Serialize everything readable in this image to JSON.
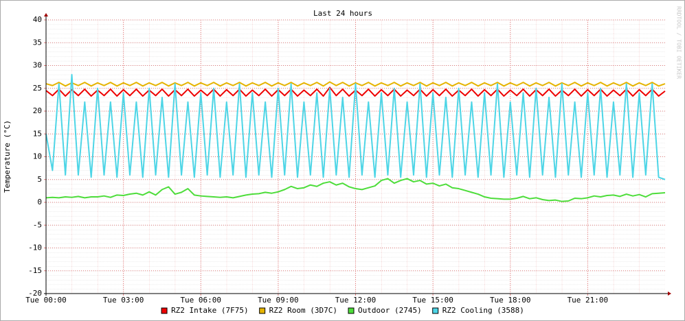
{
  "chart_data": {
    "type": "line",
    "title": "Last 24 hours",
    "y_label": "Temperature (°C)",
    "watermark": "RRDTOOL / TOBI OETIKER",
    "xlim": [
      0,
      24
    ],
    "ylim": [
      -20,
      40
    ],
    "xticks": [
      {
        "value": 0,
        "label": "Tue 00:00"
      },
      {
        "value": 3,
        "label": "Tue 03:00"
      },
      {
        "value": 6,
        "label": "Tue 06:00"
      },
      {
        "value": 9,
        "label": "Tue 09:00"
      },
      {
        "value": 12,
        "label": "Tue 12:00"
      },
      {
        "value": 15,
        "label": "Tue 15:00"
      },
      {
        "value": 18,
        "label": "Tue 18:00"
      },
      {
        "value": 21,
        "label": "Tue 21:00"
      }
    ],
    "yticks": [
      -20,
      -15,
      -10,
      -5,
      0,
      5,
      10,
      15,
      20,
      25,
      30,
      35,
      40
    ],
    "grid": true,
    "legend": "bottom",
    "x": [
      0,
      0.25,
      0.5,
      0.75,
      1,
      1.25,
      1.5,
      1.75,
      2,
      2.25,
      2.5,
      2.75,
      3,
      3.25,
      3.5,
      3.75,
      4,
      4.25,
      4.5,
      4.75,
      5,
      5.25,
      5.5,
      5.75,
      6,
      6.25,
      6.5,
      6.75,
      7,
      7.25,
      7.5,
      7.75,
      8,
      8.25,
      8.5,
      8.75,
      9,
      9.25,
      9.5,
      9.75,
      10,
      10.25,
      10.5,
      10.75,
      11,
      11.25,
      11.5,
      11.75,
      12,
      12.25,
      12.5,
      12.75,
      13,
      13.25,
      13.5,
      13.75,
      14,
      14.25,
      14.5,
      14.75,
      15,
      15.25,
      15.5,
      15.75,
      16,
      16.25,
      16.5,
      16.75,
      17,
      17.25,
      17.5,
      17.75,
      18,
      18.25,
      18.5,
      18.75,
      19,
      19.25,
      19.5,
      19.75,
      20,
      20.25,
      20.5,
      20.75,
      21,
      21.25,
      21.5,
      21.75,
      22,
      22.25,
      22.5,
      22.75,
      23,
      23.25,
      23.5,
      23.75,
      24
    ],
    "series": [
      {
        "name": "RZ2 Intake (7F75)",
        "color": "#ee0000",
        "values": [
          24.5,
          23.4,
          24.8,
          23.3,
          24.7,
          23.4,
          24.8,
          23.3,
          24.6,
          23.4,
          24.8,
          23.3,
          24.7,
          23.4,
          24.8,
          23.3,
          24.6,
          23.4,
          24.8,
          23.3,
          24.7,
          23.4,
          24.8,
          23.3,
          24.6,
          23.4,
          24.8,
          23.3,
          24.7,
          23.4,
          24.8,
          23.3,
          24.6,
          23.4,
          24.8,
          23.3,
          24.7,
          23.4,
          24.8,
          23.3,
          24.6,
          23.4,
          24.8,
          23.3,
          25.2,
          23.4,
          24.8,
          23.3,
          24.6,
          23.4,
          24.8,
          23.3,
          24.7,
          23.4,
          24.8,
          23.3,
          24.6,
          23.4,
          24.8,
          23.3,
          24.7,
          23.4,
          24.8,
          23.3,
          24.6,
          23.4,
          24.8,
          23.3,
          24.7,
          23.4,
          24.8,
          23.3,
          24.6,
          23.4,
          24.8,
          23.3,
          24.7,
          23.4,
          24.8,
          23.3,
          24.6,
          23.4,
          24.8,
          23.3,
          24.7,
          23.4,
          24.8,
          23.3,
          24.6,
          23.4,
          24.8,
          23.3,
          24.7,
          23.4,
          24.8,
          23.3,
          24.4
        ]
      },
      {
        "name": "RZ2 Room (3D7C)",
        "color": "#e6b400",
        "values": [
          26.0,
          25.6,
          26.3,
          25.5,
          26.2,
          25.6,
          26.3,
          25.5,
          26.2,
          25.6,
          26.3,
          25.5,
          26.2,
          25.6,
          26.3,
          25.5,
          26.2,
          25.6,
          26.3,
          25.5,
          26.2,
          25.6,
          26.3,
          25.5,
          26.2,
          25.6,
          26.3,
          25.5,
          26.2,
          25.6,
          26.3,
          25.5,
          26.2,
          25.6,
          26.3,
          25.5,
          26.2,
          25.6,
          26.3,
          25.5,
          26.2,
          25.6,
          26.3,
          25.5,
          26.4,
          25.6,
          26.3,
          25.5,
          26.2,
          25.6,
          26.3,
          25.5,
          26.2,
          25.6,
          26.3,
          25.5,
          26.2,
          25.6,
          26.3,
          25.5,
          26.2,
          25.6,
          26.3,
          25.5,
          26.2,
          25.6,
          26.3,
          25.5,
          26.2,
          25.6,
          26.3,
          25.5,
          26.2,
          25.6,
          26.3,
          25.5,
          26.2,
          25.6,
          26.3,
          25.5,
          26.2,
          25.6,
          26.3,
          25.5,
          26.2,
          25.6,
          26.3,
          25.5,
          26.2,
          25.6,
          26.3,
          25.5,
          26.2,
          25.6,
          26.3,
          25.5,
          26.0
        ]
      },
      {
        "name": "Outdoor (2745)",
        "color": "#4ddd3a",
        "values": [
          1.0,
          1.1,
          1.0,
          1.2,
          1.1,
          1.3,
          1.0,
          1.2,
          1.2,
          1.4,
          1.1,
          1.6,
          1.5,
          1.8,
          2.0,
          1.6,
          2.3,
          1.6,
          2.8,
          3.4,
          1.8,
          2.2,
          3.0,
          1.6,
          1.4,
          1.3,
          1.2,
          1.1,
          1.2,
          1.0,
          1.3,
          1.6,
          1.8,
          1.9,
          2.2,
          2.0,
          2.3,
          2.8,
          3.5,
          3.0,
          3.2,
          3.8,
          3.5,
          4.2,
          4.5,
          3.8,
          4.2,
          3.4,
          3.0,
          2.8,
          3.2,
          3.6,
          4.8,
          5.2,
          4.2,
          4.8,
          5.2,
          4.5,
          4.8,
          4.0,
          4.2,
          3.6,
          4.0,
          3.2,
          3.0,
          2.6,
          2.2,
          1.8,
          1.2,
          0.9,
          0.8,
          0.7,
          0.7,
          0.9,
          1.3,
          0.8,
          1.0,
          0.6,
          0.4,
          0.5,
          0.2,
          0.3,
          0.9,
          0.8,
          1.0,
          1.4,
          1.2,
          1.5,
          1.6,
          1.3,
          1.8,
          1.4,
          1.7,
          1.2,
          1.9,
          2.0,
          2.1
        ]
      },
      {
        "name": "RZ2 Cooling (3588)",
        "color": "#4dd5e6",
        "values": [
          15,
          7,
          26,
          6,
          28,
          6,
          22,
          5.5,
          25,
          6,
          22,
          5.5,
          24,
          6,
          22,
          5.5,
          25,
          6,
          23,
          5.5,
          26,
          6,
          22,
          5.5,
          24,
          6,
          25,
          5.5,
          22,
          6,
          26,
          5.5,
          24,
          6,
          22,
          5.5,
          25,
          6,
          26,
          5.5,
          22,
          6,
          24,
          5.5,
          25,
          6,
          23,
          5.5,
          26,
          6,
          22,
          5.5,
          24,
          6,
          25,
          5.5,
          22,
          6,
          26,
          5.5,
          24,
          6,
          23,
          5.5,
          25,
          6,
          22,
          5.5,
          24,
          6,
          26,
          5.5,
          22,
          6,
          24,
          5.5,
          25,
          6,
          23,
          5.5,
          26,
          6,
          22,
          5.5,
          24,
          6,
          25,
          5.5,
          22,
          6,
          26,
          5.5,
          24,
          6,
          26,
          5.5,
          5
        ]
      }
    ]
  }
}
